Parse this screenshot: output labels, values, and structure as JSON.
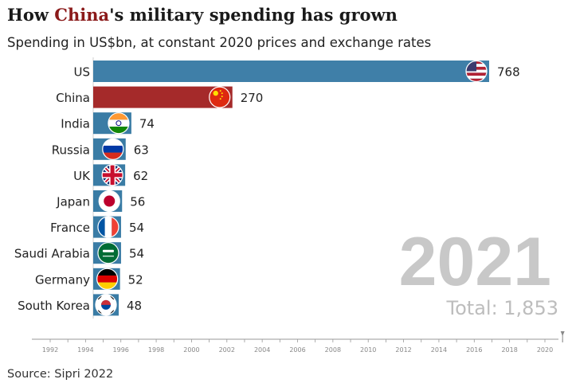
{
  "title": {
    "pre": "How ",
    "highlight": "China",
    "post": "'s military spending has grown"
  },
  "subtitle": "Spending in US$bn, at constant 2020 prices and exchange rates",
  "source": "Source: Sipri 2022",
  "colors": {
    "us": "#3f7fa8",
    "china": "#a52a2a",
    "other": "#3a7ca5",
    "year": "#c8c8c8",
    "total": "#bdbdbd",
    "axis": "#999999",
    "highlight": "#8b1a1a"
  },
  "chart_data": {
    "type": "bar",
    "orientation": "horizontal",
    "year_label": "2021",
    "total_label": "Total: 1,853",
    "categories": [
      "US",
      "China",
      "India",
      "Russia",
      "UK",
      "Japan",
      "France",
      "Saudi Arabia",
      "Germany",
      "South Korea"
    ],
    "values": [
      768,
      270,
      74,
      63,
      62,
      56,
      54,
      54,
      52,
      48
    ],
    "flags": [
      "us-flag-icon",
      "china-flag-icon",
      "india-flag-icon",
      "russia-flag-icon",
      "uk-flag-icon",
      "japan-flag-icon",
      "france-flag-icon",
      "saudi-arabia-flag-icon",
      "germany-flag-icon",
      "south-korea-flag-icon"
    ],
    "timeline": {
      "ticks": [
        "1992",
        "1994",
        "1996",
        "1998",
        "2000",
        "2002",
        "2004",
        "2006",
        "2008",
        "2010",
        "2012",
        "2014",
        "2016",
        "2018",
        "2020"
      ],
      "range": [
        1992,
        2021
      ],
      "current": 2021
    },
    "xlim": [
      0,
      768
    ]
  }
}
